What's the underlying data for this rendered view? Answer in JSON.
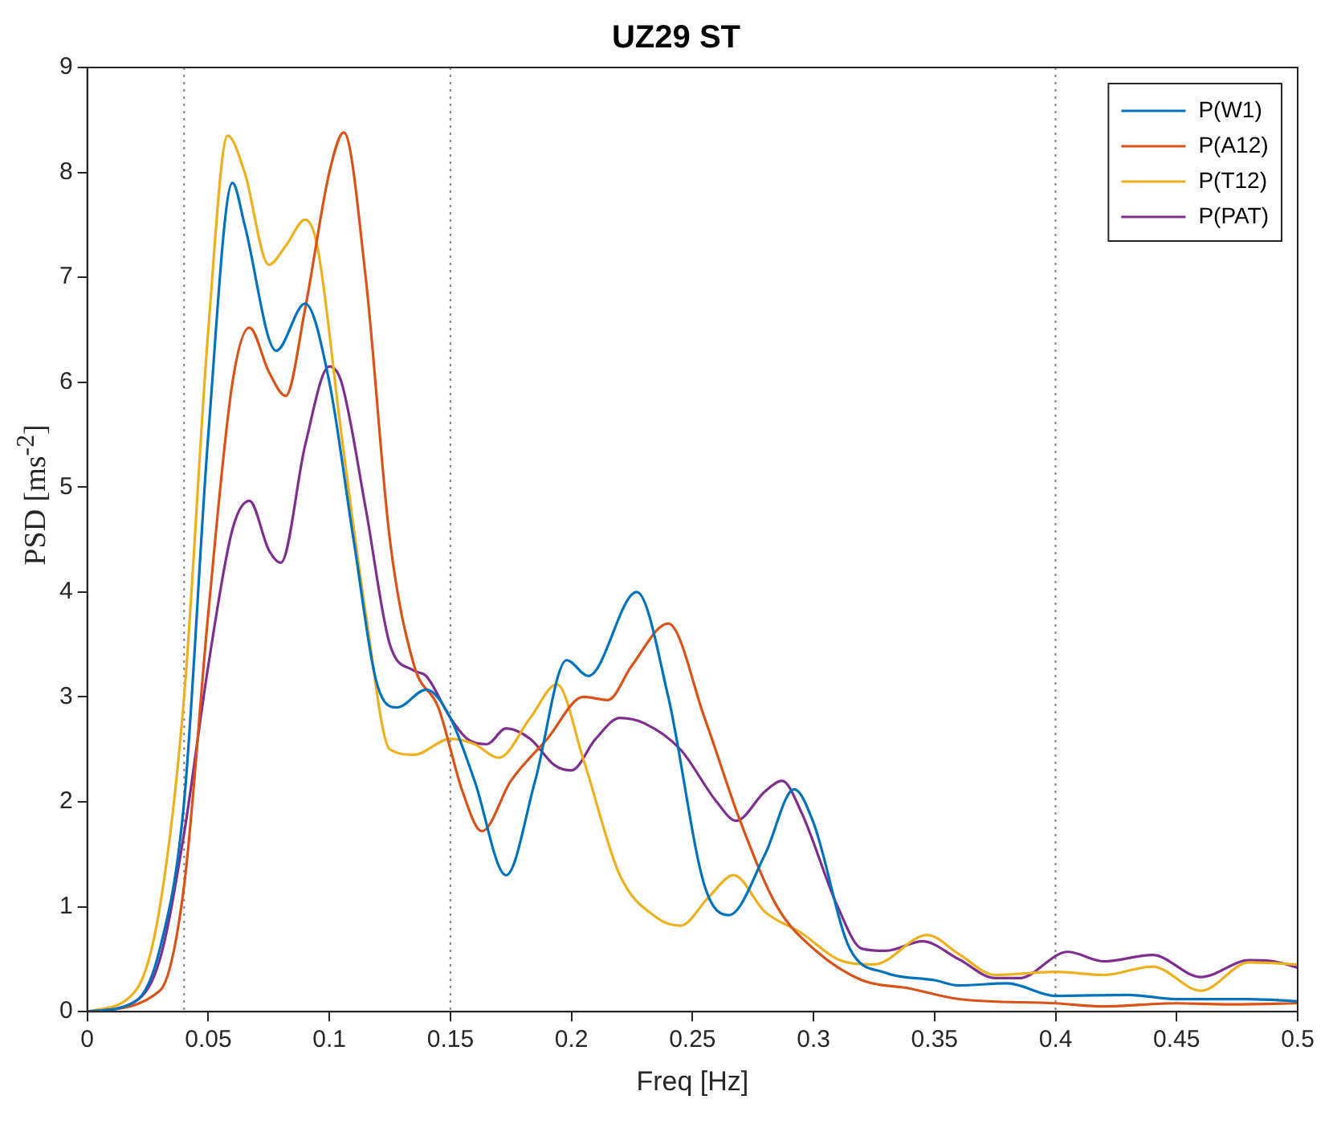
{
  "chart_data": {
    "type": "line",
    "title": "UZ29 ST",
    "xlabel": "Freq [Hz]",
    "ylabel": "PSD [ms$^{-2}$]",
    "xlim": [
      0,
      0.5
    ],
    "xticks": [
      0,
      0.05,
      0.1,
      0.15,
      0.2,
      0.25,
      0.3,
      0.35,
      0.4,
      0.45,
      0.5
    ],
    "ylim": [
      0,
      9
    ],
    "yticks": [
      0,
      1,
      2,
      3,
      4,
      5,
      6,
      7,
      8,
      9
    ],
    "grid": false,
    "legend": "top right",
    "marker": "none",
    "line_style": "solid",
    "ref_lines": [
      {
        "axis": "x",
        "value": 0.04,
        "color": "#808080",
        "line_style": "dotted"
      },
      {
        "axis": "x",
        "value": 0.15,
        "color": "#808080",
        "line_style": "dotted"
      },
      {
        "axis": "x",
        "value": 0.4,
        "color": "#808080",
        "line_style": "dotted"
      }
    ],
    "series": [
      {
        "name": "P(W1)",
        "color": "#0072bd",
        "x": [
          0,
          0.02,
          0.03,
          0.04,
          0.05,
          0.06,
          0.065,
          0.078,
          0.09,
          0.1,
          0.11,
          0.12,
          0.128,
          0.14,
          0.15,
          0.16,
          0.173,
          0.185,
          0.198,
          0.207,
          0.227,
          0.24,
          0.255,
          0.265,
          0.28,
          0.292,
          0.3,
          0.315,
          0.33,
          0.35,
          0.36,
          0.38,
          0.4,
          0.43,
          0.45,
          0.48,
          0.5
        ],
        "values": [
          0,
          0.1,
          0.6,
          2.0,
          5.5,
          7.9,
          7.5,
          6.3,
          6.75,
          6.0,
          4.5,
          3.1,
          2.9,
          3.07,
          2.8,
          2.2,
          1.3,
          2.2,
          3.35,
          3.2,
          4.0,
          3.0,
          1.2,
          0.92,
          1.5,
          2.12,
          1.8,
          0.6,
          0.37,
          0.3,
          0.25,
          0.27,
          0.15,
          0.16,
          0.12,
          0.12,
          0.1
        ]
      },
      {
        "name": "P(A12)",
        "color": "#d95319",
        "x": [
          0,
          0.03,
          0.04,
          0.05,
          0.06,
          0.067,
          0.075,
          0.082,
          0.09,
          0.1,
          0.106,
          0.115,
          0.125,
          0.135,
          0.145,
          0.155,
          0.163,
          0.175,
          0.19,
          0.205,
          0.215,
          0.225,
          0.24,
          0.255,
          0.27,
          0.285,
          0.3,
          0.32,
          0.34,
          0.36,
          0.4,
          0.42,
          0.45,
          0.47,
          0.5
        ],
        "values": [
          0,
          0.2,
          1.2,
          3.8,
          6.0,
          6.52,
          6.1,
          5.87,
          6.7,
          8.0,
          8.38,
          7.0,
          4.5,
          3.3,
          2.9,
          2.1,
          1.72,
          2.2,
          2.6,
          3.0,
          2.97,
          3.3,
          3.7,
          2.8,
          1.8,
          1.0,
          0.6,
          0.3,
          0.22,
          0.12,
          0.08,
          0.05,
          0.08,
          0.07,
          0.08
        ]
      },
      {
        "name": "P(T12)",
        "color": "#edb120",
        "x": [
          0,
          0.02,
          0.03,
          0.04,
          0.05,
          0.058,
          0.065,
          0.075,
          0.082,
          0.09,
          0.095,
          0.105,
          0.115,
          0.125,
          0.135,
          0.15,
          0.16,
          0.17,
          0.183,
          0.194,
          0.205,
          0.22,
          0.235,
          0.245,
          0.257,
          0.267,
          0.28,
          0.295,
          0.31,
          0.325,
          0.347,
          0.36,
          0.375,
          0.4,
          0.42,
          0.44,
          0.46,
          0.48,
          0.5
        ],
        "values": [
          0,
          0.2,
          1.0,
          3.0,
          6.5,
          8.35,
          8.0,
          7.12,
          7.3,
          7.55,
          7.3,
          5.5,
          3.8,
          2.5,
          2.45,
          2.6,
          2.55,
          2.42,
          2.8,
          3.12,
          2.4,
          1.3,
          0.9,
          0.82,
          1.1,
          1.3,
          0.95,
          0.75,
          0.5,
          0.45,
          0.73,
          0.55,
          0.35,
          0.38,
          0.35,
          0.43,
          0.2,
          0.47,
          0.45
        ]
      },
      {
        "name": "P(PAT)",
        "color": "#7e2f8e",
        "x": [
          0,
          0.02,
          0.03,
          0.04,
          0.05,
          0.06,
          0.067,
          0.075,
          0.08,
          0.09,
          0.1,
          0.105,
          0.115,
          0.125,
          0.135,
          0.14,
          0.15,
          0.157,
          0.165,
          0.173,
          0.183,
          0.193,
          0.2,
          0.21,
          0.22,
          0.23,
          0.245,
          0.26,
          0.268,
          0.28,
          0.287,
          0.295,
          0.31,
          0.32,
          0.33,
          0.345,
          0.36,
          0.375,
          0.385,
          0.405,
          0.42,
          0.44,
          0.46,
          0.48,
          0.49,
          0.5
        ],
        "values": [
          0,
          0.1,
          0.5,
          1.7,
          3.3,
          4.6,
          4.87,
          4.4,
          4.28,
          5.4,
          6.15,
          6.0,
          4.8,
          3.5,
          3.25,
          3.2,
          2.8,
          2.6,
          2.55,
          2.7,
          2.6,
          2.35,
          2.3,
          2.6,
          2.8,
          2.75,
          2.5,
          2.0,
          1.82,
          2.1,
          2.2,
          1.9,
          1.0,
          0.6,
          0.58,
          0.67,
          0.5,
          0.32,
          0.32,
          0.57,
          0.48,
          0.54,
          0.33,
          0.49,
          0.48,
          0.42
        ]
      }
    ]
  }
}
